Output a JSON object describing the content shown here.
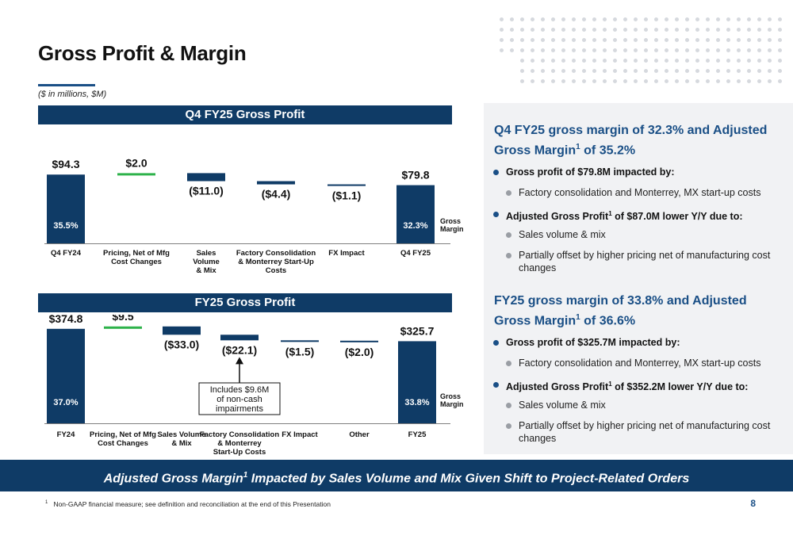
{
  "title": "Gross Profit & Margin",
  "units_note": "($ in millions, $M)",
  "chart_data": [
    {
      "type": "bar",
      "subtype": "waterfall",
      "title": "Q4 FY25 Gross Profit",
      "categories": [
        "Q4 FY24",
        "Pricing, Net of Mfg Cost Changes",
        "Sales Volume & Mix",
        "Factory Consolidation & Monterrey Start-Up Costs",
        "FX Impact",
        "Q4 FY25"
      ],
      "category_lines": [
        [
          "Q4 FY24"
        ],
        [
          "Pricing, Net of Mfg",
          "Cost Changes"
        ],
        [
          "Sales",
          "Volume",
          "& Mix"
        ],
        [
          "Factory Consolidation",
          "& Monterrey Start-Up",
          "Costs"
        ],
        [
          "FX Impact"
        ],
        [
          "Q4 FY25"
        ]
      ],
      "kinds": [
        "total",
        "increase",
        "decrease",
        "decrease",
        "decrease",
        "total"
      ],
      "values": [
        94.3,
        2.0,
        -11.0,
        -4.4,
        -1.1,
        79.8
      ],
      "value_labels": [
        "$94.3",
        "$2.0",
        "($11.0)",
        "($4.4)",
        "($1.1)",
        "$79.8"
      ],
      "margin_labels": [
        "35.5%",
        "",
        "",
        "",
        "",
        "32.3%"
      ],
      "margin_caption": [
        "Gross",
        "Margin"
      ],
      "annotation": null,
      "ylim": [
        0,
        105
      ]
    },
    {
      "type": "bar",
      "subtype": "waterfall",
      "title": "FY25 Gross Profit",
      "categories": [
        "FY24",
        "Pricing, Net of Mfg Cost Changes",
        "Sales Volume & Mix",
        "Factory Consolidation & Monterrey Start-Up Costs",
        "FX Impact",
        "Other",
        "FY25"
      ],
      "category_lines": [
        [
          "FY24"
        ],
        [
          "Pricing, Net of Mfg",
          "Cost Changes"
        ],
        [
          "Sales Volume",
          "& Mix"
        ],
        [
          "Factory Consolidation",
          "& Monterrey",
          "Start-Up Costs"
        ],
        [
          "FX Impact"
        ],
        [
          "Other"
        ],
        [
          "FY25"
        ]
      ],
      "kinds": [
        "total",
        "increase",
        "decrease",
        "decrease",
        "decrease",
        "decrease",
        "total"
      ],
      "values": [
        374.8,
        9.5,
        -33.0,
        -22.1,
        -1.5,
        -2.0,
        325.7
      ],
      "value_labels": [
        "$374.8",
        "$9.5",
        "($33.0)",
        "($22.1)",
        "($1.5)",
        "($2.0)",
        "$325.7"
      ],
      "margin_labels": [
        "37.0%",
        "",
        "",
        "",
        "",
        "",
        "33.8%"
      ],
      "margin_caption": [
        "Gross",
        "Margin"
      ],
      "annotation": {
        "target_index": 3,
        "lines": [
          "Includes $9.6M",
          "of non-cash",
          "impairments"
        ]
      },
      "ylim": [
        0,
        415
      ]
    }
  ],
  "panel": {
    "sections": [
      {
        "heading_main": "Q4 FY25 gross margin of 32.3% and Adjusted Gross Margin",
        "heading_sup": "1",
        "heading_tail": " of 35.2%",
        "bullets": [
          {
            "level": 1,
            "text": "Gross profit of $79.8M impacted by:"
          },
          {
            "level": 2,
            "text": "Factory consolidation and Monterrey, MX start-up costs"
          },
          {
            "level": 1,
            "text": "Adjusted Gross Profit",
            "sup": "1",
            "tail": " of $87.0M lower Y/Y due to:"
          },
          {
            "level": 2,
            "text": "Sales volume & mix"
          },
          {
            "level": 2,
            "text": "Partially offset by higher pricing net of manufacturing cost changes"
          }
        ]
      },
      {
        "heading_main": "FY25 gross margin of 33.8% and Adjusted Gross Margin",
        "heading_sup": "1",
        "heading_tail": " of 36.6%",
        "bullets": [
          {
            "level": 1,
            "text": "Gross profit of $325.7M impacted by:"
          },
          {
            "level": 2,
            "text": "Factory consolidation and Monterrey, MX start-up costs"
          },
          {
            "level": 1,
            "text": "Adjusted Gross Profit",
            "sup": "1",
            "tail": " of $352.2M lower Y/Y due to:"
          },
          {
            "level": 2,
            "text": "Sales volume & mix"
          },
          {
            "level": 2,
            "text": "Partially offset by higher pricing net of manufacturing cost changes"
          }
        ]
      }
    ]
  },
  "banner": {
    "main": "Adjusted Gross Margin",
    "sup": "1",
    "tail": " Impacted by Sales Volume and Mix Given Shift to Project-Related Orders"
  },
  "footnote": {
    "sup": "1",
    "text": "Non-GAAP financial measure; see definition and reconciliation at the end of this Presentation"
  },
  "page_number": "8",
  "colors": {
    "navy": "#0f3b66",
    "increase": "#2db24a",
    "accent_blue": "#1a4f86",
    "gray_bullet": "#9a9ea4"
  }
}
